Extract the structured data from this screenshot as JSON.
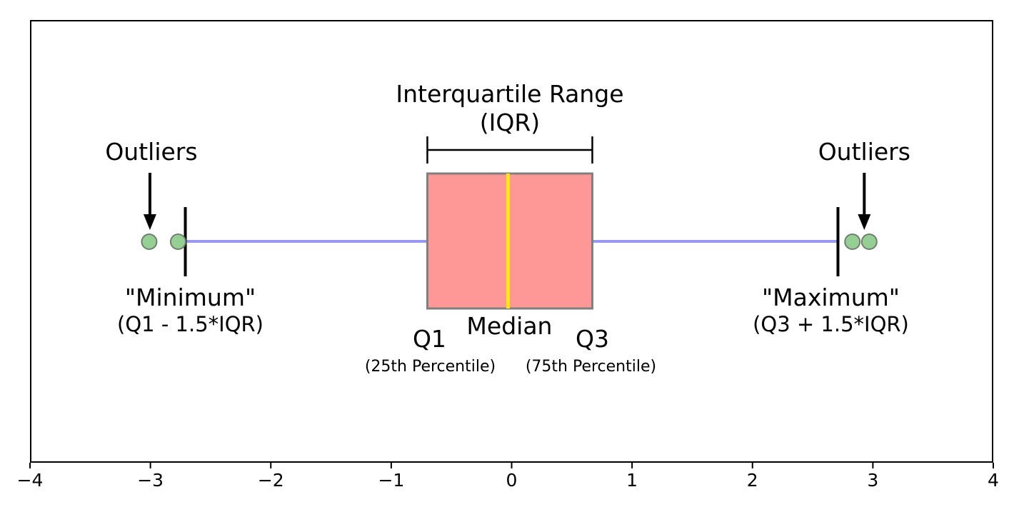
{
  "figure": {
    "background": "#ffffff",
    "axis_color": "#000000"
  },
  "chart_data": {
    "type": "boxplot",
    "orientation": "horizontal",
    "title": "",
    "xlabel": "",
    "ylabel": "",
    "grid": false,
    "legend": false,
    "xlim": [
      -4,
      4
    ],
    "tick_values": [
      -4,
      -3,
      -2,
      -1,
      0,
      1,
      2,
      3,
      4
    ],
    "tick_labels": [
      "−4",
      "−3",
      "−2",
      "−1",
      "0",
      "1",
      "2",
      "3",
      "4"
    ],
    "stats": {
      "q1": -0.7,
      "median": -0.03,
      "q3": 0.67,
      "whisker_low": -2.71,
      "whisker_high": 2.71,
      "outliers": [
        -3.01,
        -2.77,
        2.83,
        2.97
      ]
    },
    "colors": {
      "box_fill": "#fd9896",
      "box_edge": "#7f7f7f",
      "median_line": "#ffe90a",
      "whisker": "#9898f0",
      "cap": "#000000",
      "outlier_fill": "#96cf94",
      "outlier_edge": "#6f806f",
      "annotation": "#000000"
    },
    "annotations": {
      "iqr_title": "Interquartile Range",
      "iqr_subtitle": "(IQR)",
      "outliers_left": "Outliers",
      "outliers_right": "Outliers",
      "minimum_title": "\"Minimum\"",
      "minimum_subtitle": "(Q1 - 1.5*IQR)",
      "maximum_title": "\"Maximum\"",
      "maximum_subtitle": "(Q3 + 1.5*IQR)",
      "q1_label": "Q1",
      "q1_sublabel": "(25th Percentile)",
      "median_label": "Median",
      "q3_label": "Q3",
      "q3_sublabel": "(75th Percentile)"
    }
  }
}
